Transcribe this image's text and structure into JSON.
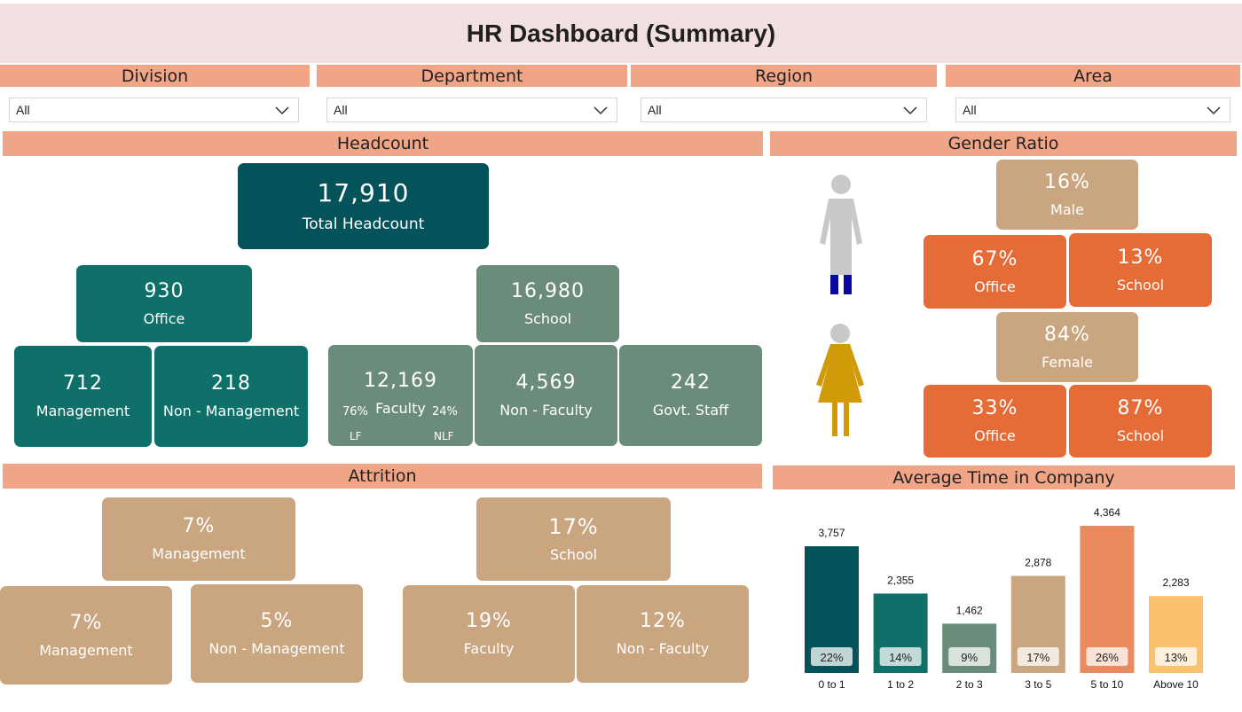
{
  "title": "HR Dashboard (Summary)",
  "filters": [
    {
      "label": "Division",
      "value": "All"
    },
    {
      "label": "Department",
      "value": "All"
    },
    {
      "label": "Region",
      "value": "All"
    },
    {
      "label": "Area",
      "value": "All"
    }
  ],
  "headcount": {
    "header": "Headcount",
    "total": {
      "value": "17,910",
      "label": "Total Headcount"
    },
    "office": {
      "value": "930",
      "label": "Office"
    },
    "school": {
      "value": "16,980",
      "label": "School"
    },
    "management": {
      "value": "712",
      "label": "Management"
    },
    "non_management": {
      "value": "218",
      "label": "Non - Management"
    },
    "faculty": {
      "value": "12,169",
      "label": "Faculty",
      "lf_pct": "76%",
      "lf_label": "LF",
      "nlf_pct": "24%",
      "nlf_label": "NLF"
    },
    "non_faculty": {
      "value": "4,569",
      "label": "Non - Faculty"
    },
    "govt_staff": {
      "value": "242",
      "label": "Govt. Staff"
    }
  },
  "gender": {
    "header": "Gender Ratio",
    "male": {
      "value": "16%",
      "label": "Male",
      "office": "67%",
      "office_label": "Office",
      "school": "13%",
      "school_label": "School"
    },
    "female": {
      "value": "84%",
      "label": "Female",
      "office": "33%",
      "office_label": "Office",
      "school": "87%",
      "school_label": "School"
    },
    "icons": {
      "male": "male-person-icon",
      "female": "female-person-icon"
    }
  },
  "attrition": {
    "header": "Attrition",
    "management_top": {
      "value": "7%",
      "label": "Management"
    },
    "school_top": {
      "value": "17%",
      "label": "School"
    },
    "management": {
      "value": "7%",
      "label": "Management"
    },
    "non_management": {
      "value": "5%",
      "label": "Non - Management"
    },
    "faculty": {
      "value": "19%",
      "label": "Faculty"
    },
    "non_faculty": {
      "value": "12%",
      "label": "Non - Faculty"
    }
  },
  "chart_data": {
    "type": "bar",
    "title": "Average Time in Company",
    "categories": [
      "0 to 1",
      "1 to 2",
      "2 to 3",
      "3 to 5",
      "5 to 10",
      "Above 10"
    ],
    "values": [
      3757,
      2355,
      1462,
      2878,
      4364,
      2283
    ],
    "value_labels": [
      "3,757",
      "2,355",
      "1,462",
      "2,878",
      "4,364",
      "2,283"
    ],
    "percent_labels": [
      "22%",
      "14%",
      "9%",
      "17%",
      "26%",
      "13%"
    ],
    "colors": [
      "#04525a",
      "#0e7069",
      "#6b8c7a",
      "#c9a680",
      "#e98a5f",
      "#fac26f"
    ],
    "ylim": [
      0,
      4364
    ],
    "grid": false
  },
  "colors": {
    "header_bg": "#f0a586",
    "title_bg": "#f2e0e0",
    "dark_teal": "#04525a",
    "teal": "#0e7069",
    "sage": "#6b8c7a",
    "tan": "#c9a680",
    "orange": "#e56c36"
  }
}
